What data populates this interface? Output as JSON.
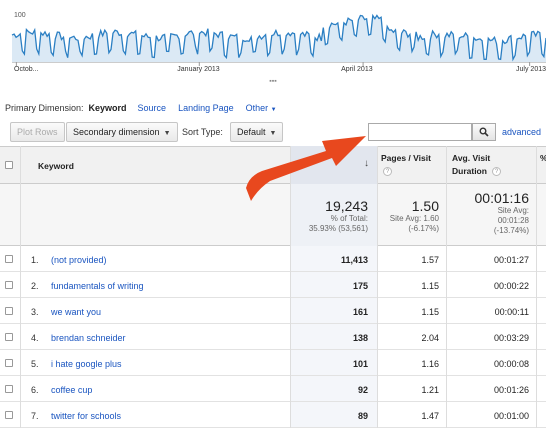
{
  "chart": {
    "y_max_label": "100",
    "x_ticks": [
      {
        "label": "Octob...",
        "pos": 0.03
      },
      {
        "label": "January 2013",
        "pos": 0.365
      },
      {
        "label": "April 2013",
        "pos": 0.665
      },
      {
        "label": "July 2013",
        "pos": 0.97
      }
    ],
    "line_color": "#2b7fc3",
    "fill_color": "#dbe9f5"
  },
  "dimension": {
    "label": "Primary Dimension:",
    "active": "Keyword",
    "links": [
      "Source",
      "Landing Page"
    ],
    "other": "Other"
  },
  "toolbar": {
    "plot_rows": "Plot Rows",
    "secondary_dimension": "Secondary dimension",
    "sort_type_label": "Sort Type:",
    "sort_type_value": "Default",
    "search_value": "",
    "advanced": "advanced"
  },
  "table": {
    "headers": {
      "keyword": "Keyword",
      "pages_visit": "Pages / Visit",
      "avg_visit_line1": "Avg. Visit",
      "avg_visit_line2": "Duration",
      "percent": "%"
    },
    "totals": {
      "visits": "19,243",
      "visits_sub1": "% of Total:",
      "visits_sub2": "35.93% (53,561)",
      "pages": "1.50",
      "pages_sub1": "Site Avg: 1.60",
      "pages_sub2": "(-6.17%)",
      "duration": "00:01:16",
      "duration_sub1": "Site Avg:",
      "duration_sub2": "00:01:28",
      "duration_sub3": "(-13.74%)"
    },
    "rows": [
      {
        "rank": "1.",
        "keyword": "(not provided)",
        "visits": "11,413",
        "pages": "1.57",
        "duration": "00:01:27"
      },
      {
        "rank": "2.",
        "keyword": "fundamentals of writing",
        "visits": "175",
        "pages": "1.15",
        "duration": "00:00:22"
      },
      {
        "rank": "3.",
        "keyword": "we want you",
        "visits": "161",
        "pages": "1.15",
        "duration": "00:00:11"
      },
      {
        "rank": "4.",
        "keyword": "brendan schneider",
        "visits": "138",
        "pages": "2.04",
        "duration": "00:03:29"
      },
      {
        "rank": "5.",
        "keyword": "i hate google plus",
        "visits": "101",
        "pages": "1.16",
        "duration": "00:00:08"
      },
      {
        "rank": "6.",
        "keyword": "coffee cup",
        "visits": "92",
        "pages": "1.21",
        "duration": "00:01:26"
      },
      {
        "rank": "7.",
        "keyword": "twitter for schools",
        "visits": "89",
        "pages": "1.47",
        "duration": "00:01:00"
      }
    ]
  },
  "annotation": {
    "arrow_color": "#e8481e"
  }
}
